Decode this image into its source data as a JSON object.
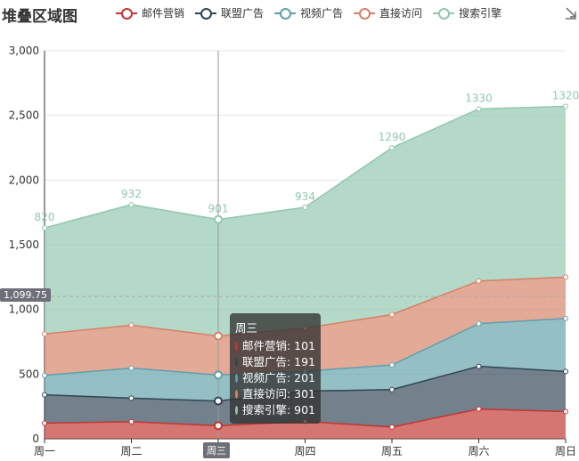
{
  "title": "堆叠区域图",
  "legend": [
    {
      "label": "邮件营销",
      "color": "#c23531"
    },
    {
      "label": "联盟广告",
      "color": "#2f4554"
    },
    {
      "label": "视频广告",
      "color": "#61a0a8"
    },
    {
      "label": "直接访问",
      "color": "#d48265"
    },
    {
      "label": "搜索引擎",
      "color": "#91c7ae"
    }
  ],
  "download_icon": "download-icon",
  "chart_data": {
    "type": "area",
    "stacked": true,
    "categories": [
      "周一",
      "周二",
      "周三",
      "周四",
      "周五",
      "周六",
      "周日"
    ],
    "series": [
      {
        "name": "邮件营销",
        "color": "#c23531",
        "values": [
          120,
          132,
          101,
          134,
          90,
          230,
          210
        ]
      },
      {
        "name": "联盟广告",
        "color": "#2f4554",
        "values": [
          220,
          182,
          191,
          234,
          290,
          330,
          310
        ]
      },
      {
        "name": "视频广告",
        "color": "#61a0a8",
        "values": [
          150,
          232,
          201,
          154,
          190,
          330,
          410
        ]
      },
      {
        "name": "直接访问",
        "color": "#d48265",
        "values": [
          320,
          332,
          301,
          334,
          390,
          330,
          320
        ]
      },
      {
        "name": "搜索引擎",
        "color": "#91c7ae",
        "values": [
          820,
          932,
          901,
          934,
          1290,
          1330,
          1320
        ]
      }
    ],
    "top_labels": [
      "820",
      "932",
      "901",
      "934",
      "1290",
      "1330",
      "1320"
    ],
    "y_ticks": [
      "0",
      "500",
      "1,000",
      "1,500",
      "2,000",
      "2,500",
      "3,000"
    ],
    "ylim": [
      0,
      3000
    ],
    "grid": true
  },
  "axis_pointer": {
    "category": "周三",
    "y_value": 1099.75,
    "y_label": "1,099.75"
  },
  "tooltip": {
    "title": "周三",
    "rows": [
      {
        "label": "邮件营销: 101",
        "color": "#c23531"
      },
      {
        "label": "联盟广告: 191",
        "color": "#2f4554"
      },
      {
        "label": "视频广告: 201",
        "color": "#61a0a8"
      },
      {
        "label": "直接访问: 301",
        "color": "#d48265"
      },
      {
        "label": "搜索引擎: 901",
        "color": "#91c7ae"
      }
    ]
  }
}
